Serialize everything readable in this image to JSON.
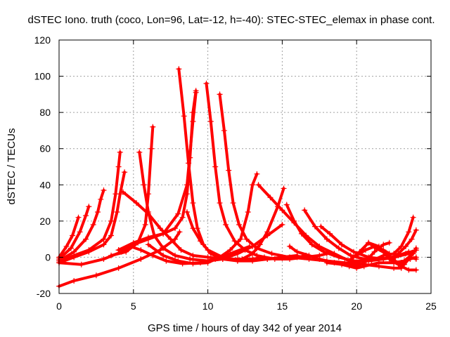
{
  "chart_data": {
    "type": "scatter",
    "title": "dSTEC Iono. truth (coco, Lon=96, Lat=-12, h=-40): STEC-STEC_elemax in phase cont.",
    "xlabel": "GPS time / hours of day 342 of year 2014",
    "ylabel": "dSTEC  / TECUs",
    "xlim": [
      0,
      25
    ],
    "ylim": [
      -20,
      120
    ],
    "xticks": [
      0,
      5,
      10,
      15,
      20,
      25
    ],
    "yticks": [
      -20,
      0,
      20,
      40,
      60,
      80,
      100,
      120
    ],
    "grid": true,
    "marker": "plus",
    "color": "#ff0000",
    "series": [
      {
        "values": [
          [
            0.0,
            -16
          ],
          [
            1.0,
            -13
          ],
          [
            2.5,
            -10
          ],
          [
            4.0,
            -6
          ],
          [
            5.5,
            -1
          ],
          [
            6.8,
            4
          ],
          [
            7.8,
            10
          ],
          [
            8.1,
            14
          ]
        ]
      },
      {
        "values": [
          [
            0.0,
            -3
          ],
          [
            1.5,
            -4
          ],
          [
            3.0,
            -1
          ],
          [
            4.2,
            3
          ],
          [
            5.0,
            7
          ],
          [
            6.0,
            10
          ],
          [
            7.0,
            13
          ],
          [
            8.0,
            24
          ],
          [
            8.6,
            40
          ],
          [
            9.0,
            75
          ],
          [
            9.2,
            91
          ]
        ]
      },
      {
        "values": [
          [
            4.0,
            4
          ],
          [
            4.8,
            6
          ],
          [
            5.5,
            4
          ],
          [
            6.3,
            1
          ],
          [
            7.2,
            -2
          ],
          [
            8.3,
            -3.5
          ],
          [
            9.5,
            -3
          ],
          [
            10.5,
            -1
          ],
          [
            11.5,
            2
          ],
          [
            12.8,
            6
          ]
        ]
      },
      {
        "values": [
          [
            0.0,
            -3
          ],
          [
            1.0,
            0
          ],
          [
            2.0,
            3
          ],
          [
            3.0,
            7
          ],
          [
            3.5,
            12
          ],
          [
            3.9,
            25
          ],
          [
            4.1,
            35
          ],
          [
            4.4,
            47
          ]
        ]
      },
      {
        "values": [
          [
            0.0,
            -2
          ],
          [
            1.0,
            3
          ],
          [
            1.8,
            10
          ],
          [
            2.3,
            18
          ],
          [
            2.6,
            25
          ],
          [
            2.8,
            32
          ],
          [
            3.0,
            37
          ]
        ]
      },
      {
        "values": [
          [
            0.0,
            -1
          ],
          [
            0.8,
            5
          ],
          [
            1.4,
            14
          ],
          [
            1.8,
            23
          ],
          [
            2.0,
            28
          ]
        ]
      },
      {
        "values": [
          [
            0.0,
            0
          ],
          [
            0.5,
            6
          ],
          [
            0.9,
            12
          ],
          [
            1.3,
            22
          ]
        ]
      },
      {
        "values": [
          [
            0.2,
            -2
          ],
          [
            1.0,
            1
          ],
          [
            2.0,
            4
          ],
          [
            3.0,
            10
          ],
          [
            3.5,
            20
          ],
          [
            3.8,
            35
          ],
          [
            4.0,
            50
          ],
          [
            4.1,
            58
          ]
        ]
      },
      {
        "values": [
          [
            4.3,
            36
          ],
          [
            5.2,
            30
          ],
          [
            6.0,
            24
          ],
          [
            6.8,
            16
          ],
          [
            7.5,
            10
          ],
          [
            8.2,
            4
          ],
          [
            9.0,
            1
          ],
          [
            10.0,
            0
          ],
          [
            11.0,
            -1
          ],
          [
            12.0,
            -1
          ],
          [
            13.0,
            -1
          ],
          [
            13.8,
            0
          ]
        ]
      },
      {
        "values": [
          [
            3.5,
            1
          ],
          [
            4.5,
            3
          ],
          [
            5.3,
            8
          ],
          [
            5.8,
            18
          ],
          [
            6.0,
            35
          ],
          [
            6.2,
            60
          ],
          [
            6.3,
            72
          ]
        ]
      },
      {
        "values": [
          [
            5.4,
            58
          ],
          [
            5.7,
            40
          ],
          [
            6.0,
            25
          ],
          [
            6.4,
            12
          ],
          [
            7.0,
            5
          ],
          [
            7.8,
            1
          ],
          [
            8.8,
            -1
          ],
          [
            10.0,
            -2
          ],
          [
            11.0,
            -1
          ],
          [
            12.0,
            2
          ],
          [
            13.0,
            6
          ],
          [
            14.0,
            12
          ],
          [
            15.0,
            18
          ]
        ]
      },
      {
        "values": [
          [
            8.05,
            104
          ],
          [
            8.4,
            78
          ],
          [
            8.7,
            52
          ],
          [
            9.0,
            30
          ],
          [
            9.3,
            16
          ],
          [
            9.7,
            7
          ],
          [
            10.2,
            2
          ],
          [
            11.0,
            -1
          ],
          [
            12.0,
            -2
          ],
          [
            13.0,
            -1.5
          ],
          [
            14.0,
            -1
          ],
          [
            15.0,
            -0.5
          ],
          [
            16.0,
            0
          ],
          [
            16.6,
            1
          ]
        ]
      },
      {
        "values": [
          [
            4.0,
            4
          ],
          [
            5.0,
            8
          ],
          [
            6.0,
            11
          ],
          [
            7.0,
            13
          ],
          [
            7.8,
            16
          ],
          [
            8.3,
            22
          ],
          [
            8.6,
            35
          ],
          [
            8.8,
            55
          ],
          [
            9.0,
            80
          ],
          [
            9.2,
            92
          ]
        ]
      },
      {
        "values": [
          [
            8.6,
            25
          ],
          [
            9.0,
            16
          ],
          [
            9.5,
            9
          ],
          [
            10.0,
            4
          ],
          [
            11.0,
            0
          ],
          [
            12.0,
            -2
          ],
          [
            13.0,
            -2
          ],
          [
            14.0,
            -1
          ],
          [
            15.0,
            0
          ],
          [
            16.0,
            1
          ]
        ]
      },
      {
        "values": [
          [
            6.0,
            7
          ],
          [
            7.0,
            1
          ],
          [
            8.0,
            -2
          ],
          [
            9.0,
            -3.5
          ],
          [
            10.0,
            -3
          ],
          [
            10.8,
            0
          ],
          [
            11.5,
            4
          ],
          [
            12.2,
            10
          ],
          [
            12.7,
            25
          ],
          [
            13.0,
            40
          ],
          [
            13.3,
            46
          ]
        ]
      },
      {
        "values": [
          [
            9.9,
            96
          ],
          [
            10.2,
            75
          ],
          [
            10.5,
            50
          ],
          [
            10.8,
            30
          ],
          [
            11.2,
            18
          ],
          [
            11.8,
            9
          ],
          [
            12.5,
            4
          ],
          [
            13.3,
            1
          ],
          [
            14.5,
            -1
          ],
          [
            15.5,
            -1
          ],
          [
            16.5,
            0
          ],
          [
            17.5,
            1
          ],
          [
            18.0,
            2
          ]
        ]
      },
      {
        "values": [
          [
            10.8,
            90
          ],
          [
            11.1,
            70
          ],
          [
            11.4,
            48
          ],
          [
            11.7,
            30
          ],
          [
            12.1,
            18
          ],
          [
            12.6,
            10
          ],
          [
            13.3,
            5
          ],
          [
            14.3,
            2
          ],
          [
            15.5,
            0
          ],
          [
            16.8,
            -1
          ],
          [
            18.0,
            -2
          ],
          [
            19.2,
            -3
          ],
          [
            20.0,
            -4
          ]
        ]
      },
      {
        "values": [
          [
            12.3,
            -1
          ],
          [
            13.0,
            2
          ],
          [
            13.5,
            7
          ],
          [
            14.0,
            14
          ],
          [
            14.7,
            28
          ],
          [
            15.1,
            38
          ]
        ]
      },
      {
        "values": [
          [
            13.4,
            40
          ],
          [
            14.2,
            33
          ],
          [
            15.0,
            26
          ],
          [
            15.8,
            19
          ],
          [
            16.6,
            12
          ],
          [
            17.5,
            6
          ],
          [
            18.5,
            2
          ],
          [
            19.5,
            -2
          ],
          [
            20.5,
            -4
          ],
          [
            21.5,
            -5
          ],
          [
            22.5,
            -6
          ],
          [
            23.0,
            -6
          ]
        ]
      },
      {
        "values": [
          [
            15.3,
            29
          ],
          [
            15.8,
            20
          ],
          [
            16.3,
            13
          ],
          [
            17.0,
            7
          ],
          [
            17.8,
            3
          ],
          [
            18.8,
            0
          ],
          [
            19.8,
            -2
          ],
          [
            20.8,
            -2
          ],
          [
            21.8,
            -1
          ],
          [
            22.8,
            1
          ],
          [
            23.5,
            3
          ]
        ]
      },
      {
        "values": [
          [
            16.5,
            26
          ],
          [
            17.2,
            17
          ],
          [
            18.0,
            10
          ],
          [
            18.8,
            5
          ],
          [
            19.6,
            1
          ],
          [
            20.5,
            -1
          ],
          [
            21.5,
            -1
          ],
          [
            22.5,
            0
          ],
          [
            23.5,
            2
          ],
          [
            24.0,
            4
          ]
        ]
      },
      {
        "values": [
          [
            17.6,
            17
          ],
          [
            18.2,
            13
          ],
          [
            19.0,
            7
          ],
          [
            19.8,
            3
          ],
          [
            20.8,
            0
          ],
          [
            21.8,
            -1
          ],
          [
            22.6,
            0
          ],
          [
            23.3,
            2
          ],
          [
            24.0,
            4
          ]
        ]
      },
      {
        "values": [
          [
            15.5,
            6
          ],
          [
            16.0,
            3
          ],
          [
            16.8,
            1
          ],
          [
            17.5,
            -1
          ],
          [
            18.5,
            -3
          ],
          [
            19.5,
            -5
          ],
          [
            20.0,
            -6
          ],
          [
            20.5,
            -5
          ],
          [
            21.5,
            -3
          ],
          [
            22.5,
            -3
          ],
          [
            23.2,
            -2
          ],
          [
            23.8,
            2
          ],
          [
            24.0,
            5
          ]
        ]
      },
      {
        "values": [
          [
            18.0,
            -3
          ],
          [
            19.0,
            -4
          ],
          [
            20.0,
            -5
          ],
          [
            20.5,
            -3
          ],
          [
            21.2,
            3
          ],
          [
            21.8,
            7
          ],
          [
            22.2,
            8
          ]
        ]
      },
      {
        "values": [
          [
            19.5,
            -2
          ],
          [
            20.2,
            3
          ],
          [
            20.8,
            8
          ],
          [
            21.5,
            6
          ],
          [
            22.0,
            1
          ],
          [
            22.5,
            -3
          ],
          [
            23.0,
            -3
          ],
          [
            23.6,
            -1
          ],
          [
            24.0,
            0
          ]
        ]
      },
      {
        "values": [
          [
            20.0,
            1
          ],
          [
            20.6,
            4
          ],
          [
            21.2,
            6
          ],
          [
            21.8,
            4
          ],
          [
            22.2,
            2
          ]
        ]
      },
      {
        "values": [
          [
            20.8,
            8
          ],
          [
            21.3,
            5
          ],
          [
            22.0,
            2
          ],
          [
            22.6,
            -2
          ],
          [
            23.0,
            -5
          ],
          [
            23.5,
            -7
          ],
          [
            24.0,
            -7
          ]
        ]
      },
      {
        "values": [
          [
            21.0,
            -2
          ],
          [
            21.8,
            1
          ],
          [
            22.5,
            2
          ],
          [
            23.0,
            6
          ],
          [
            23.5,
            14
          ],
          [
            23.8,
            22
          ]
        ]
      },
      {
        "values": [
          [
            22.2,
            -1
          ],
          [
            22.8,
            -4
          ],
          [
            23.2,
            -4
          ],
          [
            23.6,
            0
          ],
          [
            24.0,
            -1
          ]
        ]
      },
      {
        "values": [
          [
            22.3,
            -1
          ],
          [
            22.8,
            2
          ],
          [
            23.3,
            6
          ],
          [
            23.7,
            10
          ],
          [
            24.0,
            15
          ]
        ]
      }
    ]
  }
}
